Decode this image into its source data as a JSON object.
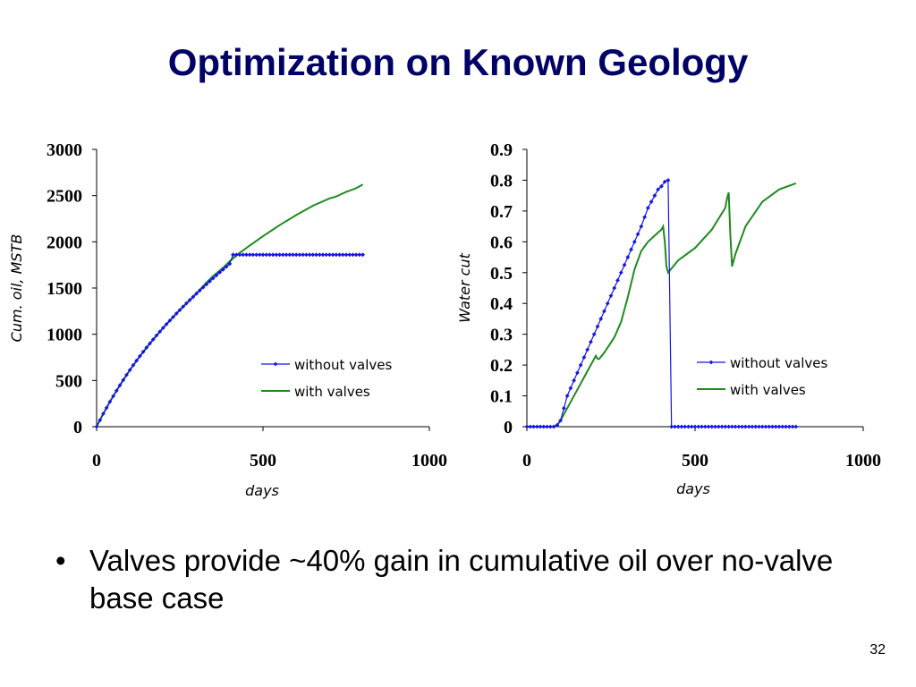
{
  "slide": {
    "title": "Optimization on Known Geology",
    "bullet_symbol": "•",
    "bullet_text": "Valves provide ~40% gain in cumulative oil over no-valve base case",
    "page_number": "32"
  },
  "colors": {
    "title": "#000066",
    "without_valves": "#1515e6",
    "with_valves": "#1f8a1f"
  },
  "chart_data": [
    {
      "type": "line",
      "xlabel": "days",
      "ylabel": "Cum. oil, MSTB",
      "xlim": [
        0,
        1000
      ],
      "ylim": [
        0,
        3000
      ],
      "xticks": [
        0,
        500,
        1000
      ],
      "yticks": [
        0,
        500,
        1000,
        1500,
        2000,
        2500,
        3000
      ],
      "grid": false,
      "legend_position": "center-right",
      "series": [
        {
          "name": "without valves",
          "marker": "diamond",
          "x": [
            0,
            10,
            20,
            30,
            40,
            50,
            60,
            70,
            80,
            90,
            100,
            110,
            120,
            130,
            140,
            150,
            160,
            170,
            180,
            190,
            200,
            210,
            220,
            230,
            240,
            250,
            260,
            270,
            280,
            290,
            300,
            310,
            320,
            330,
            340,
            350,
            360,
            370,
            380,
            390,
            400,
            410,
            420,
            430,
            440,
            450,
            460,
            470,
            480,
            490,
            500,
            510,
            520,
            530,
            540,
            550,
            560,
            570,
            580,
            590,
            600,
            610,
            620,
            630,
            640,
            650,
            660,
            670,
            680,
            690,
            700,
            710,
            720,
            730,
            740,
            750,
            760,
            770,
            780,
            790,
            800
          ],
          "y": [
            0,
            70,
            140,
            205,
            270,
            330,
            390,
            448,
            505,
            560,
            613,
            665,
            715,
            763,
            810,
            856,
            900,
            944,
            987,
            1028,
            1069,
            1109,
            1148,
            1187,
            1225,
            1262,
            1299,
            1335,
            1370,
            1405,
            1440,
            1474,
            1507,
            1540,
            1573,
            1605,
            1637,
            1669,
            1700,
            1731,
            1762,
            1860,
            1860,
            1860,
            1860,
            1860,
            1860,
            1860,
            1860,
            1860,
            1860,
            1860,
            1860,
            1860,
            1860,
            1860,
            1860,
            1860,
            1860,
            1860,
            1860,
            1860,
            1860,
            1860,
            1860,
            1860,
            1860,
            1860,
            1860,
            1860,
            1860,
            1860,
            1860,
            1860,
            1860,
            1860,
            1860,
            1860,
            1860,
            1860,
            1860
          ]
        },
        {
          "name": "with valves",
          "x": [
            0,
            20,
            40,
            60,
            80,
            100,
            130,
            160,
            200,
            250,
            300,
            330,
            350,
            380,
            400,
            430,
            460,
            500,
            550,
            600,
            650,
            700,
            720,
            750,
            780,
            800
          ],
          "y": [
            0,
            140,
            270,
            390,
            505,
            613,
            763,
            900,
            1069,
            1262,
            1440,
            1560,
            1630,
            1720,
            1790,
            1880,
            1960,
            2060,
            2180,
            2290,
            2390,
            2470,
            2490,
            2540,
            2580,
            2620
          ]
        }
      ]
    },
    {
      "type": "line",
      "xlabel": "days",
      "ylabel": "Water cut",
      "xlim": [
        0,
        1000
      ],
      "ylim": [
        0,
        0.9
      ],
      "xticks": [
        0,
        500,
        1000
      ],
      "yticks": [
        0,
        0.1,
        0.2,
        0.3,
        0.4,
        0.5,
        0.6,
        0.7,
        0.8,
        0.9
      ],
      "grid": false,
      "legend_position": "center-right",
      "series": [
        {
          "name": "without valves",
          "marker": "diamond",
          "x": [
            0,
            10,
            20,
            30,
            40,
            50,
            60,
            70,
            80,
            90,
            100,
            110,
            120,
            130,
            140,
            150,
            160,
            170,
            180,
            190,
            200,
            210,
            220,
            230,
            240,
            250,
            260,
            270,
            280,
            290,
            300,
            310,
            320,
            330,
            340,
            350,
            360,
            370,
            380,
            390,
            400,
            410,
            420,
            430,
            440,
            450,
            460,
            470,
            480,
            490,
            500,
            510,
            520,
            530,
            540,
            550,
            560,
            570,
            580,
            590,
            600,
            610,
            620,
            630,
            640,
            650,
            660,
            670,
            680,
            690,
            700,
            710,
            720,
            730,
            740,
            750,
            760,
            770,
            780,
            790,
            800
          ],
          "y": [
            0,
            0,
            0,
            0,
            0,
            0,
            0,
            0,
            0,
            0.005,
            0.02,
            0.06,
            0.1,
            0.125,
            0.15,
            0.175,
            0.2,
            0.225,
            0.25,
            0.275,
            0.3,
            0.325,
            0.35,
            0.375,
            0.4,
            0.425,
            0.45,
            0.475,
            0.5,
            0.525,
            0.55,
            0.575,
            0.6,
            0.625,
            0.65,
            0.68,
            0.71,
            0.73,
            0.75,
            0.77,
            0.78,
            0.795,
            0.8,
            0,
            0,
            0,
            0,
            0,
            0,
            0,
            0,
            0,
            0,
            0,
            0,
            0,
            0,
            0,
            0,
            0,
            0,
            0,
            0,
            0,
            0,
            0,
            0,
            0,
            0,
            0,
            0,
            0,
            0,
            0,
            0,
            0,
            0,
            0,
            0,
            0,
            0
          ]
        },
        {
          "name": "with valves",
          "x": [
            0,
            80,
            90,
            100,
            120,
            150,
            170,
            190,
            200,
            205,
            210,
            215,
            230,
            260,
            280,
            300,
            320,
            340,
            360,
            380,
            400,
            405,
            410,
            415,
            420,
            450,
            500,
            550,
            590,
            595,
            600,
            605,
            610,
            620,
            650,
            700,
            750,
            800
          ],
          "y": [
            0,
            0,
            0.005,
            0.02,
            0.06,
            0.12,
            0.16,
            0.2,
            0.22,
            0.23,
            0.22,
            0.22,
            0.24,
            0.29,
            0.34,
            0.42,
            0.51,
            0.57,
            0.6,
            0.62,
            0.64,
            0.65,
            0.6,
            0.52,
            0.5,
            0.54,
            0.58,
            0.64,
            0.71,
            0.74,
            0.76,
            0.62,
            0.52,
            0.56,
            0.65,
            0.73,
            0.77,
            0.79
          ]
        }
      ]
    }
  ]
}
